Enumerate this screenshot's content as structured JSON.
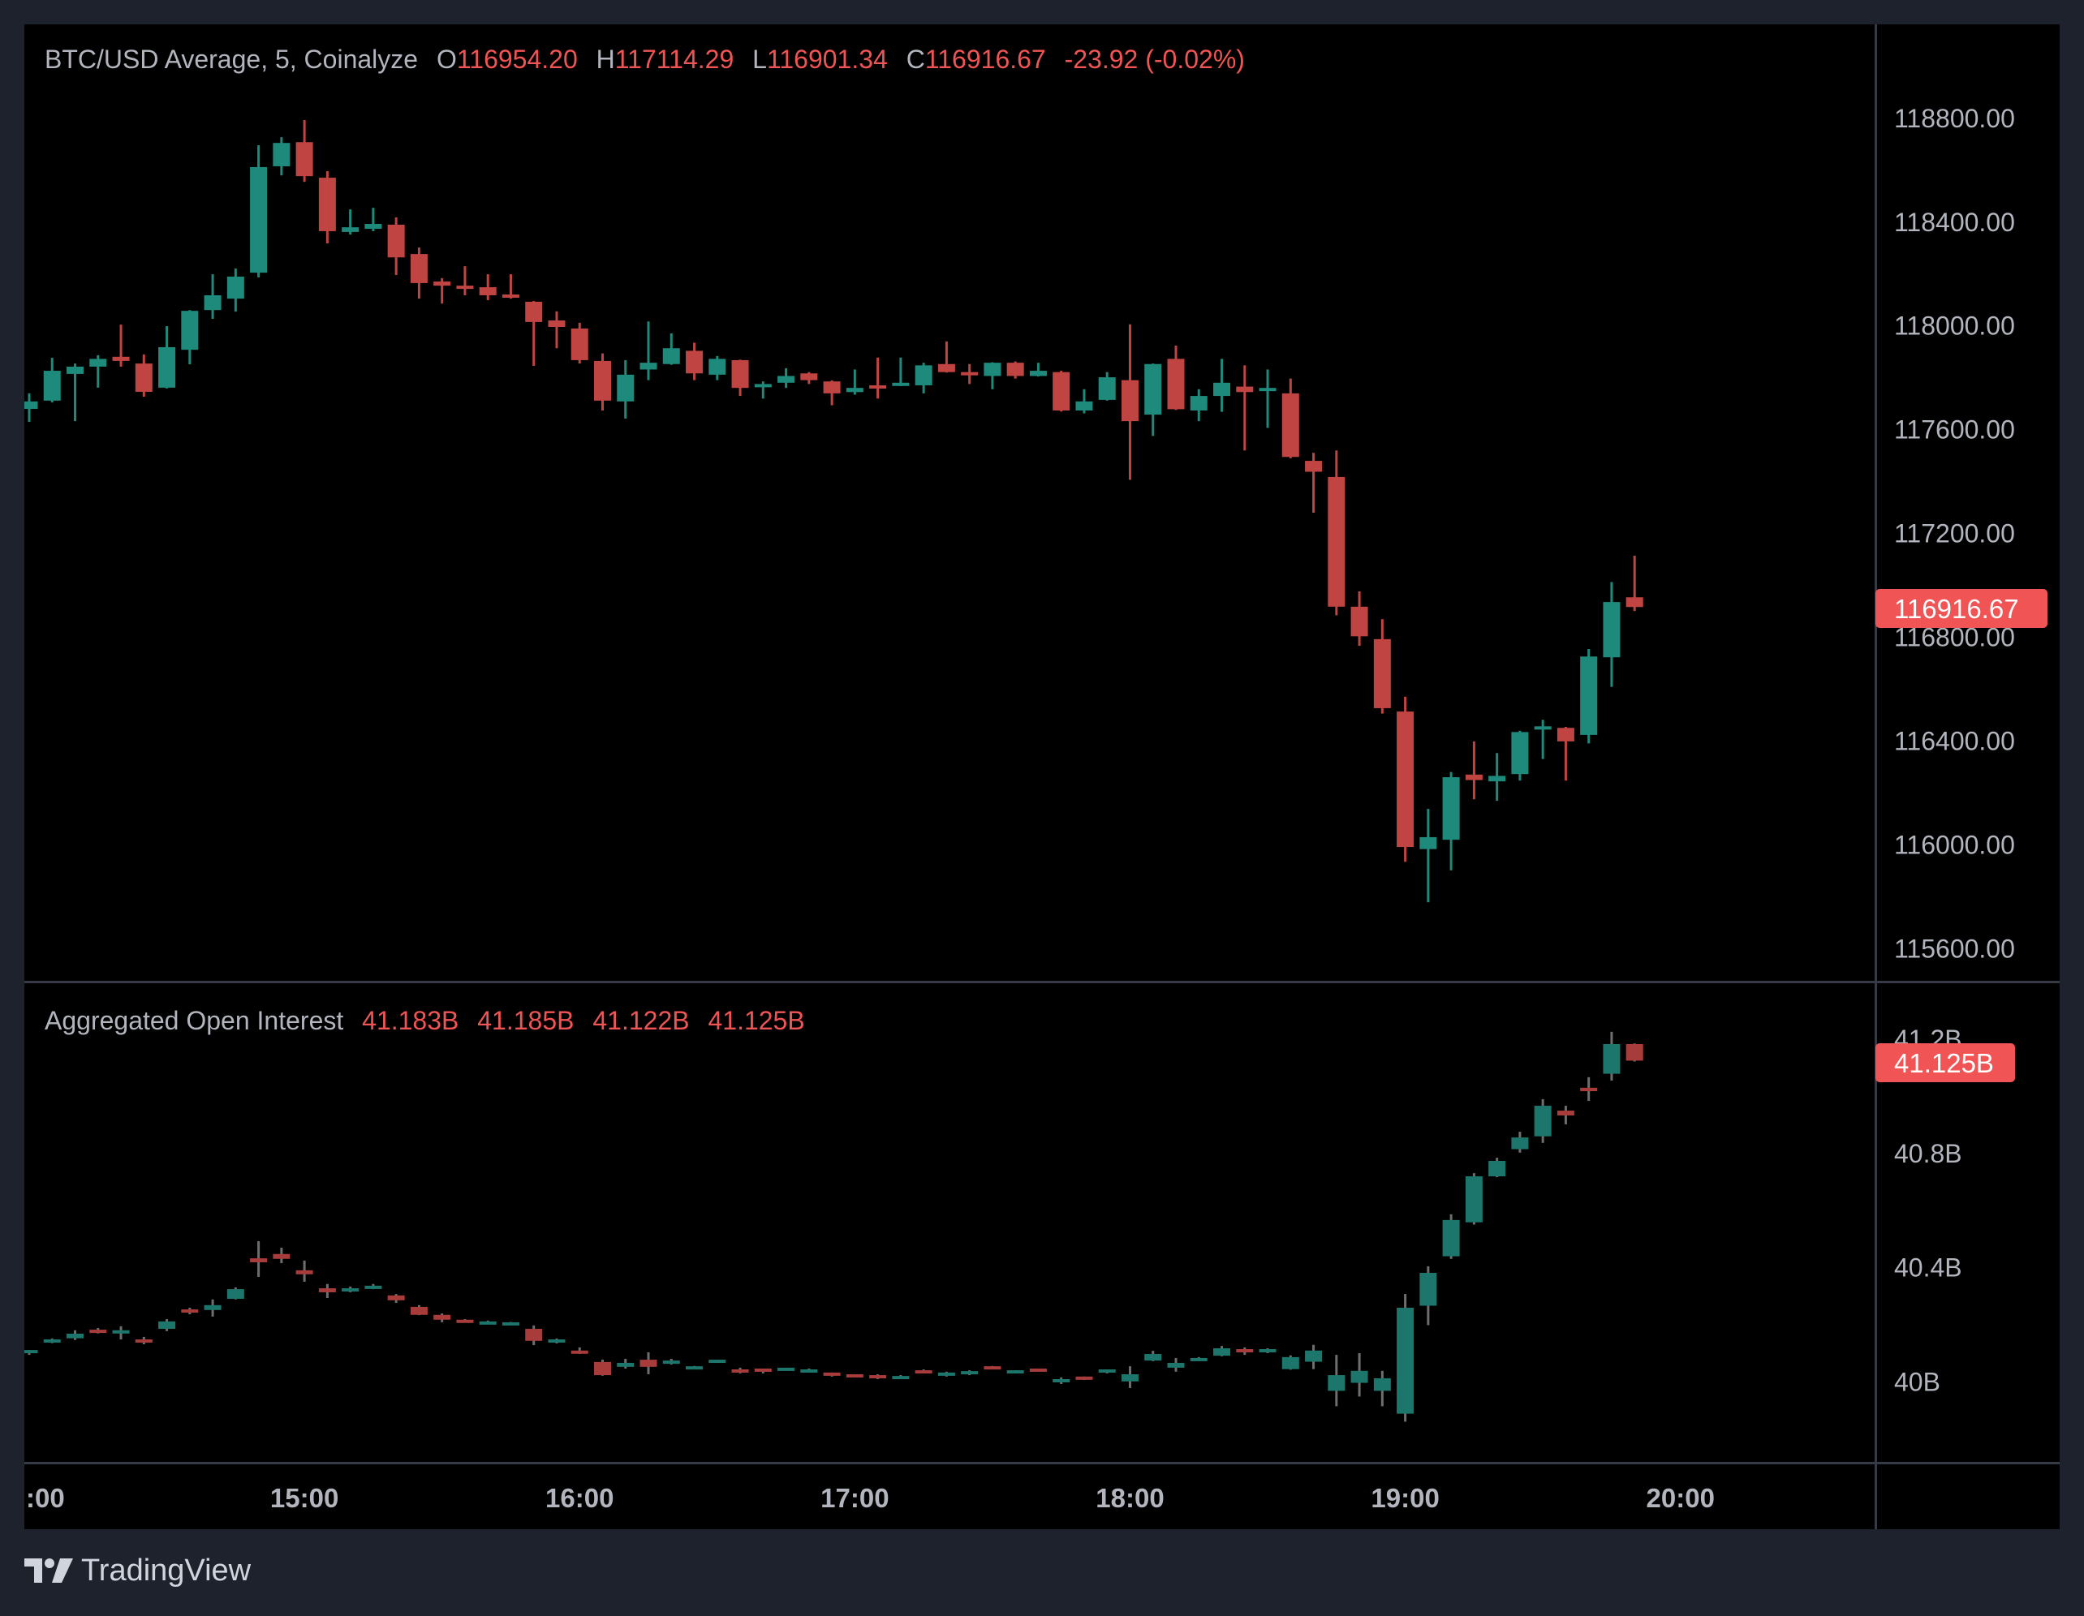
{
  "colors": {
    "up": "#1e8a7c",
    "down": "#c04442",
    "oi_up": "#1c766b",
    "oi_down": "#a83c3b",
    "oi_wick": "#6e6e6e",
    "last_label": "#f05454",
    "legend_value": "#f05454"
  },
  "legend": {
    "title": "BTC/USD Average, 5, Coinalyze",
    "o_label": "O",
    "o": "116954.20",
    "h_label": "H",
    "h": "117114.29",
    "l_label": "L",
    "l": "116901.34",
    "c_label": "C",
    "c": "116916.67",
    "change": "-23.92 (-0.02%)"
  },
  "oi_legend": {
    "title": "Aggregated Open Interest",
    "o": "41.183B",
    "h": "41.185B",
    "l": "41.122B",
    "c": "41.125B"
  },
  "branding": {
    "logo_text": "TradingView"
  },
  "chart_data": [
    {
      "type": "candlestick",
      "title": "BTC/USD Average, 5, Coinalyze",
      "interval_minutes": 5,
      "y_ticks": [
        "118800.00",
        "118400.00",
        "118000.00",
        "117600.00",
        "117200.00",
        "116800.00",
        "116400.00",
        "116000.00",
        "115600.00"
      ],
      "ylim": [
        115500,
        119050
      ],
      "last_value_label": "116916.67",
      "x_ticks": [
        ":00",
        "15:00",
        "16:00",
        "17:00",
        "18:00",
        "19:00",
        "20:00"
      ],
      "columns": [
        "time",
        "open",
        "high",
        "low",
        "close"
      ],
      "candles": [
        [
          "14:00",
          117680,
          117740,
          117630,
          117709
        ],
        [
          "14:05",
          117712,
          117877,
          117705,
          117827
        ],
        [
          "14:10",
          117815,
          117855,
          117633,
          117843
        ],
        [
          "14:15",
          117843,
          117887,
          117762,
          117873
        ],
        [
          "14:20",
          117881,
          118005,
          117843,
          117865
        ],
        [
          "14:25",
          117855,
          117890,
          117727,
          117746
        ],
        [
          "14:30",
          117762,
          117999,
          117759,
          117918
        ],
        [
          "14:35",
          117908,
          118061,
          117852,
          118058
        ],
        [
          "14:40",
          118061,
          118199,
          118027,
          118118
        ],
        [
          "14:45",
          118105,
          118221,
          118055,
          118190
        ],
        [
          "14:50",
          118205,
          118696,
          118187,
          118612
        ],
        [
          "14:55",
          118615,
          118727,
          118580,
          118705
        ],
        [
          "15:00",
          118708,
          118793,
          118555,
          118577
        ],
        [
          "15:05",
          118571,
          118596,
          118318,
          118365
        ],
        [
          "15:10",
          118362,
          118449,
          118352,
          118380
        ],
        [
          "15:15",
          118374,
          118455,
          118365,
          118393
        ],
        [
          "15:20",
          118390,
          118418,
          118196,
          118264
        ],
        [
          "15:25",
          118277,
          118302,
          118105,
          118165
        ],
        [
          "15:30",
          118171,
          118184,
          118086,
          118155
        ],
        [
          "15:35",
          118155,
          118230,
          118118,
          118143
        ],
        [
          "15:40",
          118149,
          118199,
          118099,
          118118
        ],
        [
          "15:45",
          118121,
          118199,
          118105,
          118111
        ],
        [
          "15:50",
          118093,
          118096,
          117846,
          118015
        ],
        [
          "15:55",
          118021,
          118056,
          117914,
          117996
        ],
        [
          "16:00",
          117990,
          118012,
          117855,
          117868
        ],
        [
          "16:05",
          117865,
          117894,
          117674,
          117712
        ],
        [
          "16:10",
          117709,
          117868,
          117643,
          117812
        ],
        [
          "16:15",
          117832,
          118017,
          117791,
          117858
        ],
        [
          "16:20",
          117853,
          117971,
          117850,
          117914
        ],
        [
          "16:25",
          117904,
          117935,
          117791,
          117817
        ],
        [
          "16:30",
          117812,
          117884,
          117791,
          117873
        ],
        [
          "16:35",
          117868,
          117870,
          117730,
          117761
        ],
        [
          "16:40",
          117766,
          117786,
          117720,
          117776
        ],
        [
          "16:45",
          117781,
          117837,
          117761,
          117807
        ],
        [
          "16:50",
          117817,
          117822,
          117776,
          117791
        ],
        [
          "16:55",
          117786,
          117790,
          117694,
          117740
        ],
        [
          "17:00",
          117745,
          117832,
          117735,
          117761
        ],
        [
          "17:05",
          117771,
          117878,
          117720,
          117761
        ],
        [
          "17:10",
          117771,
          117878,
          117768,
          117781
        ],
        [
          "17:15",
          117771,
          117858,
          117740,
          117848
        ],
        [
          "17:20",
          117853,
          117940,
          117820,
          117822
        ],
        [
          "17:25",
          117822,
          117853,
          117776,
          117812
        ],
        [
          "17:30",
          117807,
          117860,
          117756,
          117858
        ],
        [
          "17:35",
          117858,
          117863,
          117797,
          117807
        ],
        [
          "17:40",
          117807,
          117858,
          117805,
          117827
        ],
        [
          "17:45",
          117822,
          117827,
          117670,
          117674
        ],
        [
          "17:50",
          117674,
          117756,
          117663,
          117709
        ],
        [
          "17:55",
          117715,
          117822,
          117712,
          117802
        ],
        [
          "18:00",
          117791,
          118006,
          117407,
          117633
        ],
        [
          "18:05",
          117658,
          117855,
          117576,
          117853
        ],
        [
          "18:10",
          117873,
          117924,
          117676,
          117679
        ],
        [
          "18:15",
          117674,
          117756,
          117633,
          117730
        ],
        [
          "18:20",
          117730,
          117873,
          117669,
          117781
        ],
        [
          "18:25",
          117766,
          117848,
          117520,
          117745
        ],
        [
          "18:30",
          117750,
          117832,
          117607,
          117761
        ],
        [
          "18:35",
          117740,
          117797,
          117490,
          117495
        ],
        [
          "18:40",
          117480,
          117511,
          117280,
          117438
        ],
        [
          "18:45",
          117418,
          117520,
          116885,
          116918
        ],
        [
          "18:50",
          116918,
          116977,
          116767,
          116804
        ],
        [
          "18:55",
          116793,
          116870,
          116506,
          116527
        ],
        [
          "19:00",
          116514,
          116571,
          115935,
          115992
        ],
        [
          "19:05",
          115984,
          116139,
          115779,
          116030
        ],
        [
          "19:10",
          116020,
          116281,
          115902,
          116261
        ],
        [
          "19:15",
          116271,
          116399,
          116176,
          116250
        ],
        [
          "19:20",
          116245,
          116354,
          116170,
          116266
        ],
        [
          "19:25",
          116273,
          116440,
          116248,
          116435
        ],
        [
          "19:30",
          116448,
          116482,
          116331,
          116457
        ],
        [
          "19:35",
          116451,
          116455,
          116248,
          116399
        ],
        [
          "19:40",
          116424,
          116755,
          116391,
          116726
        ],
        [
          "19:45",
          116723,
          117013,
          116609,
          116936
        ],
        [
          "19:50",
          116954.2,
          117114.29,
          116901.34,
          116916.67
        ]
      ]
    },
    {
      "type": "candlestick",
      "title": "Aggregated Open Interest",
      "unit": "B",
      "y_ticks": [
        "41.2B",
        "40.8B",
        "40.4B",
        "40B"
      ],
      "ylim": [
        39.78,
        41.27
      ],
      "last_value_label": "41.125B",
      "columns": [
        "time",
        "open",
        "high",
        "low",
        "close"
      ],
      "candles": [
        [
          "14:00",
          40.105,
          40.112,
          40.095,
          40.112
        ],
        [
          "14:05",
          40.142,
          40.152,
          40.136,
          40.149
        ],
        [
          "14:10",
          40.153,
          40.181,
          40.147,
          40.169
        ],
        [
          "14:15",
          40.183,
          40.189,
          40.17,
          40.176
        ],
        [
          "14:20",
          40.173,
          40.195,
          40.149,
          40.181
        ],
        [
          "14:25",
          40.149,
          40.158,
          40.132,
          40.142
        ],
        [
          "14:30",
          40.186,
          40.22,
          40.178,
          40.212
        ],
        [
          "14:35",
          40.254,
          40.26,
          40.237,
          40.246
        ],
        [
          "14:40",
          40.252,
          40.289,
          40.229,
          40.269
        ],
        [
          "14:45",
          40.291,
          40.331,
          40.289,
          40.325
        ],
        [
          "14:50",
          40.433,
          40.493,
          40.368,
          40.419
        ],
        [
          "14:55",
          40.448,
          40.47,
          40.416,
          40.431
        ],
        [
          "15:00",
          40.391,
          40.425,
          40.351,
          40.377
        ],
        [
          "15:05",
          40.328,
          40.343,
          40.294,
          40.314
        ],
        [
          "15:10",
          40.32,
          40.334,
          40.314,
          40.328
        ],
        [
          "15:15",
          40.328,
          40.343,
          40.325,
          40.337
        ],
        [
          "15:20",
          40.303,
          40.308,
          40.277,
          40.286
        ],
        [
          "15:25",
          40.263,
          40.269,
          40.234,
          40.235
        ],
        [
          "15:30",
          40.235,
          40.24,
          40.209,
          40.218
        ],
        [
          "15:35",
          40.218,
          40.22,
          40.208,
          40.209
        ],
        [
          "15:40",
          40.203,
          40.215,
          40.202,
          40.212
        ],
        [
          "15:45",
          40.2,
          40.21,
          40.199,
          40.209
        ],
        [
          "15:50",
          40.186,
          40.198,
          40.129,
          40.144
        ],
        [
          "15:55",
          40.141,
          40.152,
          40.135,
          40.149
        ],
        [
          "16:00",
          40.11,
          40.121,
          40.098,
          40.101
        ],
        [
          "16:05",
          40.07,
          40.078,
          40.022,
          40.024
        ],
        [
          "16:10",
          40.053,
          40.081,
          40.047,
          40.067
        ],
        [
          "16:15",
          40.078,
          40.104,
          40.027,
          40.053
        ],
        [
          "16:20",
          40.067,
          40.081,
          40.061,
          40.075
        ],
        [
          "16:25",
          40.047,
          40.056,
          40.044,
          40.055
        ],
        [
          "16:30",
          40.07,
          40.078,
          40.067,
          40.078
        ],
        [
          "16:35",
          40.044,
          40.05,
          40.03,
          40.036
        ],
        [
          "16:40",
          40.047,
          40.047,
          40.03,
          40.038
        ],
        [
          "16:45",
          40.041,
          40.05,
          40.04,
          40.05
        ],
        [
          "16:50",
          40.036,
          40.047,
          40.035,
          40.044
        ],
        [
          "16:55",
          40.033,
          40.033,
          40.019,
          40.024
        ],
        [
          "17:00",
          40.027,
          40.027,
          40.016,
          40.019
        ],
        [
          "17:05",
          40.024,
          40.027,
          40.01,
          40.016
        ],
        [
          "17:10",
          40.013,
          40.024,
          40.012,
          40.021
        ],
        [
          "17:15",
          40.041,
          40.044,
          40.03,
          40.033
        ],
        [
          "17:20",
          40.024,
          40.036,
          40.019,
          40.033
        ],
        [
          "17:25",
          40.027,
          40.041,
          40.024,
          40.038
        ],
        [
          "17:30",
          40.055,
          40.056,
          40.046,
          40.047
        ],
        [
          "17:35",
          40.033,
          40.041,
          40.03,
          40.041
        ],
        [
          "17:40",
          40.047,
          40.047,
          40.037,
          40.038
        ],
        [
          "17:45",
          40.002,
          40.016,
          39.993,
          40.01
        ],
        [
          "17:50",
          40.019,
          40.019,
          40.007,
          40.01
        ],
        [
          "17:55",
          40.036,
          40.044,
          40.03,
          40.044
        ],
        [
          "18:00",
          40.002,
          40.055,
          39.979,
          40.027
        ],
        [
          "18:05",
          40.075,
          40.109,
          40.073,
          40.098
        ],
        [
          "18:10",
          40.05,
          40.084,
          40.036,
          40.067
        ],
        [
          "18:15",
          40.075,
          40.087,
          40.073,
          40.084
        ],
        [
          "18:20",
          40.092,
          40.126,
          40.09,
          40.118
        ],
        [
          "18:25",
          40.115,
          40.121,
          40.095,
          40.107
        ],
        [
          "18:30",
          40.104,
          40.118,
          40.101,
          40.115
        ],
        [
          "18:35",
          40.045,
          40.093,
          40.043,
          40.087
        ],
        [
          "18:40",
          40.071,
          40.13,
          40.045,
          40.11
        ],
        [
          "18:45",
          39.969,
          40.095,
          39.915,
          40.024
        ],
        [
          "18:50",
          39.997,
          40.101,
          39.949,
          40.039
        ],
        [
          "18:55",
          39.969,
          40.039,
          39.915,
          40.013
        ],
        [
          "19:00",
          39.889,
          40.308,
          39.861,
          40.26
        ],
        [
          "19:05",
          40.267,
          40.405,
          40.199,
          40.382
        ],
        [
          "19:10",
          40.44,
          40.587,
          40.431,
          40.567
        ],
        [
          "19:15",
          40.559,
          40.731,
          40.551,
          40.72
        ],
        [
          "19:20",
          40.72,
          40.785,
          40.717,
          40.774
        ],
        [
          "19:25",
          40.815,
          40.876,
          40.803,
          40.856
        ],
        [
          "19:30",
          40.86,
          40.99,
          40.837,
          40.967
        ],
        [
          "19:35",
          40.95,
          40.967,
          40.902,
          40.933
        ],
        [
          "19:40",
          41.03,
          41.067,
          40.984,
          41.018
        ],
        [
          "19:45",
          41.079,
          41.226,
          41.055,
          41.183
        ],
        [
          "19:50",
          41.183,
          41.185,
          41.122,
          41.125
        ]
      ]
    }
  ]
}
